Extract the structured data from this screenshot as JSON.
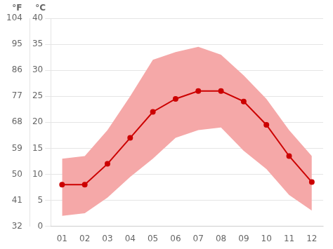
{
  "chart_data": {
    "type": "line",
    "categories": [
      "01",
      "02",
      "03",
      "04",
      "05",
      "06",
      "07",
      "08",
      "09",
      "10",
      "11",
      "12"
    ],
    "series": [
      {
        "type": "area",
        "color": "#f5a8a8",
        "values": [
          2.0,
          2.5,
          5.5,
          9.5,
          13.0,
          17.0,
          18.5,
          19.0,
          14.5,
          11.0,
          6.0,
          3.0
        ]
      },
      {
        "type": "area",
        "color": "#f5a8a8",
        "values": [
          13.0,
          13.5,
          18.5,
          25.0,
          32.0,
          33.5,
          34.5,
          33.0,
          29.0,
          24.5,
          18.5,
          13.5
        ]
      },
      {
        "type": "line",
        "color": "#cc0000",
        "marker": "circle",
        "values": [
          8.0,
          8.0,
          12.0,
          17.0,
          22.0,
          24.5,
          26.0,
          26.0,
          24.0,
          19.5,
          13.5,
          8.5
        ]
      }
    ],
    "ylabel": "°C",
    "y2label": "°F",
    "ylim": [
      0,
      40
    ],
    "yticks": [
      0,
      5,
      10,
      15,
      20,
      25,
      30,
      35,
      40
    ],
    "y2lim": [
      32,
      104
    ],
    "y2ticks": [
      32,
      41,
      50,
      59,
      68,
      77,
      86,
      95,
      104
    ],
    "grid": true
  }
}
